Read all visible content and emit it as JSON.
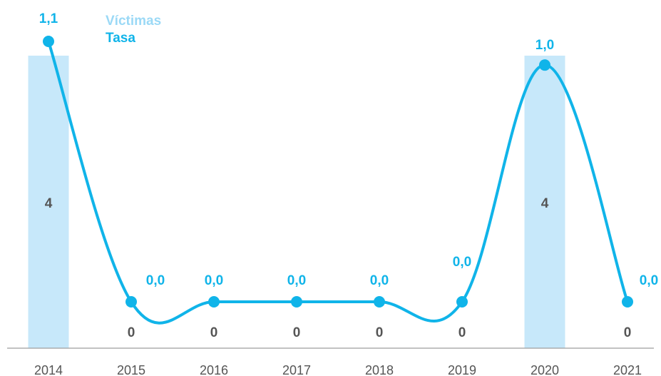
{
  "colors": {
    "bar": "#c7e8fa",
    "line": "#10b4e9",
    "bar_label": "#555555",
    "axis_label": "#555555",
    "axis_line": "#9e9e9e",
    "legend_victimas": "#9bd9f6",
    "legend_tasa": "#10b4e9"
  },
  "legend": {
    "victimas": "Víctimas",
    "tasa": "Tasa"
  },
  "chart_data": {
    "type": "bar",
    "categories": [
      "2014",
      "2015",
      "2016",
      "2017",
      "2018",
      "2019",
      "2020",
      "2021"
    ],
    "series": [
      {
        "name": "Víctimas",
        "type": "bar",
        "values": [
          4,
          0,
          0,
          0,
          0,
          0,
          4,
          0
        ],
        "labels": [
          "4",
          "0",
          "0",
          "0",
          "0",
          "0",
          "4",
          "0"
        ]
      },
      {
        "name": "Tasa",
        "type": "line",
        "smooth": true,
        "values": [
          1.1,
          0.0,
          0.0,
          0.0,
          0.0,
          0.0,
          1.0,
          0.0
        ],
        "labels": [
          "1,1",
          "0,0",
          "0,0",
          "0,0",
          "0,0",
          "0,0",
          "1,0",
          "0,0"
        ]
      }
    ],
    "title": "",
    "xlabel": "",
    "ylabel": "",
    "legend_position": "top-left",
    "grid": false
  }
}
